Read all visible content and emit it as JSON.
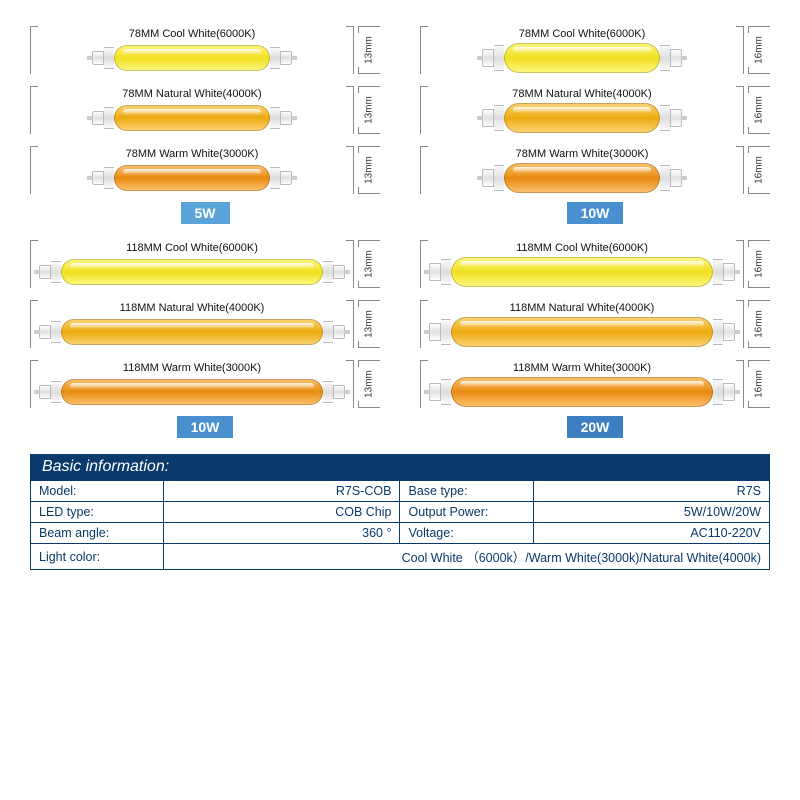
{
  "colors": {
    "cool_white": "#f6ea3a",
    "cool_grad": "linear-gradient(#fdf57a,#f0e020,#fdf57a)",
    "natural_white": "#f5b82a",
    "natural_grad": "linear-gradient(#fad270,#eeaa10,#fad270)",
    "warm_white": "#f29a2e",
    "warm_grad": "linear-gradient(#fabf6a,#e88a10,#fabf6a)",
    "badge5": "#5aa3d8",
    "badge10a": "#4a8fcf",
    "badge10b": "#4a8fcf",
    "badge20": "#3e7fc3",
    "header": "#0a3a6b"
  },
  "groups": [
    {
      "id": "g1",
      "length": "78MM",
      "diam": "13mm",
      "size": "short",
      "wide": false,
      "wattage": "5W",
      "badge_color": "#5aa3d8",
      "variants": [
        {
          "label": "78MM  Cool White(6000K)",
          "grad": "linear-gradient(#fdf57a,#f0e020,#fdf57a)"
        },
        {
          "label": "78MM  Natural White(4000K)",
          "grad": "linear-gradient(#fad270,#eeaa10,#fad270)"
        },
        {
          "label": "78MM  Warm White(3000K)",
          "grad": "linear-gradient(#fabf6a,#e88a10,#fabf6a)"
        }
      ]
    },
    {
      "id": "g2",
      "length": "78MM",
      "diam": "16mm",
      "size": "short",
      "wide": true,
      "wattage": "10W",
      "badge_color": "#4a8fcf",
      "variants": [
        {
          "label": "78MM  Cool White(6000K)",
          "grad": "linear-gradient(#fdf57a,#f0e020,#fdf57a)"
        },
        {
          "label": "78MM  Natural White(4000K)",
          "grad": "linear-gradient(#fad270,#eeaa10,#fad270)"
        },
        {
          "label": "78MM  Warm White(3000K)",
          "grad": "linear-gradient(#fabf6a,#e88a10,#fabf6a)"
        }
      ]
    },
    {
      "id": "g3",
      "length": "118MM",
      "diam": "13mm",
      "size": "long",
      "wide": false,
      "wattage": "10W",
      "badge_color": "#4a8fcf",
      "variants": [
        {
          "label": "118MM  Cool White(6000K)",
          "grad": "linear-gradient(#fdf57a,#f0e020,#fdf57a)"
        },
        {
          "label": "118MM  Natural White(4000K)",
          "grad": "linear-gradient(#fad270,#eeaa10,#fad270)"
        },
        {
          "label": "118MM  Warm White(3000K)",
          "grad": "linear-gradient(#fabf6a,#e88a10,#fabf6a)"
        }
      ]
    },
    {
      "id": "g4",
      "length": "118MM",
      "diam": "16mm",
      "size": "long",
      "wide": true,
      "wattage": "20W",
      "badge_color": "#3e7fc3",
      "variants": [
        {
          "label": "118MM  Cool White(6000K)",
          "grad": "linear-gradient(#fdf57a,#f0e020,#fdf57a)"
        },
        {
          "label": "118MM  Natural White(4000K)",
          "grad": "linear-gradient(#fad270,#eeaa10,#fad270)"
        },
        {
          "label": "118MM  Warm White(3000K)",
          "grad": "linear-gradient(#fabf6a,#e88a10,#fabf6a)"
        }
      ]
    }
  ],
  "info": {
    "header": "Basic information:",
    "rows": [
      [
        {
          "l": "Model:",
          "v": "R7S-COB"
        },
        {
          "l": "Base type:",
          "v": "R7S"
        }
      ],
      [
        {
          "l": "LED type:",
          "v": "COB Chip"
        },
        {
          "l": "Output Power:",
          "v": "5W/10W/20W"
        }
      ],
      [
        {
          "l": "Beam angle:",
          "v": "360 °"
        },
        {
          "l": "Voltage:",
          "v": "AC110-220V"
        }
      ]
    ],
    "last": {
      "l": "Light color:",
      "v": "Cool White （6000k）/Warm White(3000k)/Natural White(4000k)"
    }
  }
}
